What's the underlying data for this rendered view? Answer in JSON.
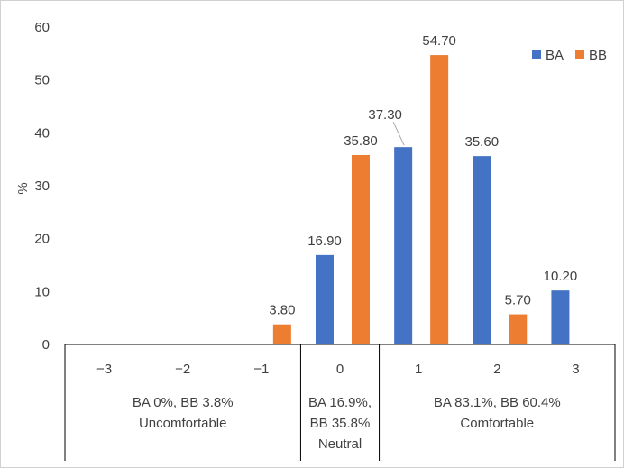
{
  "chart_data": {
    "type": "bar",
    "ylabel": "%",
    "ylim": [
      0,
      60
    ],
    "y_ticks": [
      "0",
      "10",
      "20",
      "30",
      "40",
      "50",
      "60"
    ],
    "categories": [
      "−3",
      "−2",
      "−1",
      "0",
      "1",
      "2",
      "3"
    ],
    "series": [
      {
        "name": "BA",
        "color": "#4472C4",
        "values": [
          0,
          0,
          0,
          16.9,
          37.3,
          35.6,
          10.2
        ],
        "labels": [
          "",
          "",
          "",
          "16.90",
          "37.30",
          "35.60",
          "10.20"
        ]
      },
      {
        "name": "BB",
        "color": "#ED7D31",
        "values": [
          0,
          0,
          3.8,
          35.8,
          54.7,
          5.7,
          0
        ],
        "labels": [
          "",
          "",
          "3.80",
          "35.80",
          "54.70",
          "5.70",
          ""
        ]
      }
    ],
    "groups": [
      {
        "from": 0,
        "to": 2,
        "lines": [
          "BA 0%, BB 3.8%",
          "Uncomfortable"
        ]
      },
      {
        "from": 3,
        "to": 3,
        "lines": [
          "BA 16.9%,",
          "BB 35.8%",
          "Neutral"
        ]
      },
      {
        "from": 4,
        "to": 6,
        "lines": [
          "BA 83.1%, BB 60.4%",
          "Comfortable"
        ]
      }
    ],
    "legend_position": "top-right",
    "grid": false
  }
}
